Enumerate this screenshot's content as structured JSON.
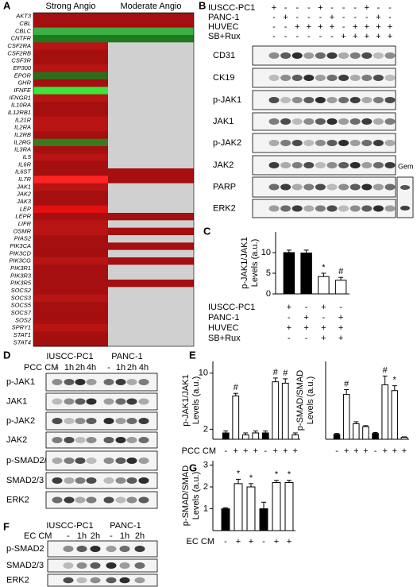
{
  "panel_labels": [
    "A",
    "B",
    "C",
    "D",
    "E",
    "F",
    "G"
  ],
  "heatmap": {
    "columns": [
      "Strong Angio",
      "Moderate Angio"
    ],
    "rows": [
      {
        "gene": "AKT3",
        "colors": [
          "#a50f0f",
          "#a50f0f"
        ]
      },
      {
        "gene": "CBL",
        "colors": [
          "#a50f0f",
          "#a50f0f"
        ]
      },
      {
        "gene": "CBLC",
        "colors": [
          "#3cb043",
          "#3cb043"
        ]
      },
      {
        "gene": "CNTFR",
        "colors": [
          "#1f7a1f",
          "#1f7a1f"
        ]
      },
      {
        "gene": "CSF2RA",
        "colors": [
          "#b81414",
          "#d0d0d0"
        ]
      },
      {
        "gene": "CSF2RB",
        "colors": [
          "#a50f0f",
          "#d0d0d0"
        ]
      },
      {
        "gene": "CSF3R",
        "colors": [
          "#a50f0f",
          "#d0d0d0"
        ]
      },
      {
        "gene": "EP300",
        "colors": [
          "#b81414",
          "#d0d0d0"
        ]
      },
      {
        "gene": "EPOR",
        "colors": [
          "#2e6b1a",
          "#d0d0d0"
        ]
      },
      {
        "gene": "GHR",
        "colors": [
          "#a50f0f",
          "#d0d0d0"
        ]
      },
      {
        "gene": "IFNFE",
        "colors": [
          "#39e639",
          "#d0d0d0"
        ]
      },
      {
        "gene": "IFNGR1",
        "colors": [
          "#b81414",
          "#d0d0d0"
        ]
      },
      {
        "gene": "IL10RA",
        "colors": [
          "#a50f0f",
          "#d0d0d0"
        ]
      },
      {
        "gene": "IL12RB1",
        "colors": [
          "#a50f0f",
          "#d0d0d0"
        ]
      },
      {
        "gene": "IL21R",
        "colors": [
          "#b81414",
          "#d0d0d0"
        ]
      },
      {
        "gene": "IL2RA",
        "colors": [
          "#b81414",
          "#d0d0d0"
        ]
      },
      {
        "gene": "IL2RB",
        "colors": [
          "#a50f0f",
          "#d0d0d0"
        ]
      },
      {
        "gene": "IL2RG",
        "colors": [
          "#3a7a1c",
          "#d0d0d0"
        ]
      },
      {
        "gene": "IL3RA",
        "colors": [
          "#a50f0f",
          "#d0d0d0"
        ]
      },
      {
        "gene": "IL5",
        "colors": [
          "#b81414",
          "#d0d0d0"
        ]
      },
      {
        "gene": "IL6R",
        "colors": [
          "#a50f0f",
          "#d0d0d0"
        ]
      },
      {
        "gene": "IL6ST",
        "colors": [
          "#a50f0f",
          "#a50f0f"
        ]
      },
      {
        "gene": "IL7R",
        "colors": [
          "#ff2424",
          "#a50f0f"
        ]
      },
      {
        "gene": "JAK1",
        "colors": [
          "#b81414",
          "#d0d0d0"
        ]
      },
      {
        "gene": "JAK2",
        "colors": [
          "#a50f0f",
          "#d0d0d0"
        ]
      },
      {
        "gene": "JAK3",
        "colors": [
          "#a50f0f",
          "#d0d0d0"
        ]
      },
      {
        "gene": "LEP",
        "colors": [
          "#e31010",
          "#d0d0d0"
        ]
      },
      {
        "gene": "LEPR",
        "colors": [
          "#a50f0f",
          "#a50f0f"
        ]
      },
      {
        "gene": "LIFR",
        "colors": [
          "#b81414",
          "#d0d0d0"
        ]
      },
      {
        "gene": "OSMR",
        "colors": [
          "#b81414",
          "#a50f0f"
        ]
      },
      {
        "gene": "PIAS2",
        "colors": [
          "#a50f0f",
          "#d0d0d0"
        ]
      },
      {
        "gene": "PIK3CA",
        "colors": [
          "#a50f0f",
          "#a50f0f"
        ]
      },
      {
        "gene": "PIK3CD",
        "colors": [
          "#a50f0f",
          "#d0d0d0"
        ]
      },
      {
        "gene": "PIK3CG",
        "colors": [
          "#b81414",
          "#a50f0f"
        ]
      },
      {
        "gene": "PIK3R1",
        "colors": [
          "#a50f0f",
          "#d0d0d0"
        ]
      },
      {
        "gene": "PIK3R3",
        "colors": [
          "#a50f0f",
          "#d0d0d0"
        ]
      },
      {
        "gene": "PIK3R5",
        "colors": [
          "#a50f0f",
          "#a50f0f"
        ]
      },
      {
        "gene": "SOCS2",
        "colors": [
          "#a50f0f",
          "#d0d0d0"
        ]
      },
      {
        "gene": "SOCS3",
        "colors": [
          "#b81414",
          "#d0d0d0"
        ]
      },
      {
        "gene": "SOCS5",
        "colors": [
          "#a50f0f",
          "#d0d0d0"
        ]
      },
      {
        "gene": "SOCS7",
        "colors": [
          "#a50f0f",
          "#d0d0d0"
        ]
      },
      {
        "gene": "SOS2",
        "colors": [
          "#a50f0f",
          "#d0d0d0"
        ]
      },
      {
        "gene": "SPRY1",
        "colors": [
          "#b81414",
          "#d0d0d0"
        ]
      },
      {
        "gene": "STAT1",
        "colors": [
          "#a50f0f",
          "#d0d0d0"
        ]
      },
      {
        "gene": "STAT4",
        "colors": [
          "#a50f0f",
          "#d0d0d0"
        ]
      }
    ]
  },
  "blot_b": {
    "conditions": [
      {
        "label": "IUSCC-PC1",
        "signs": [
          "+",
          "-",
          "-",
          "-",
          "+",
          "-",
          "-",
          "-",
          "+",
          "-",
          "-"
        ]
      },
      {
        "label": "PANC-1",
        "signs": [
          "-",
          "+",
          "-",
          "-",
          "-",
          "+",
          "-",
          "-",
          "-",
          "+",
          "-"
        ]
      },
      {
        "label": "HUVEC",
        "signs": [
          "-",
          "-",
          "+",
          "+",
          "+",
          "+",
          "-",
          "+",
          "+",
          "+",
          "+"
        ]
      },
      {
        "label": "SB+Rux",
        "signs": [
          "-",
          "-",
          "-",
          "-",
          "-",
          "-",
          "+",
          "+",
          "+",
          "+",
          "+"
        ]
      }
    ],
    "rows": [
      "CD31",
      "CK19",
      "p-JAK1",
      "JAK1",
      "p-JAK2",
      "JAK2",
      "PARP",
      "ERK2"
    ],
    "side_label": "Gem"
  },
  "blot_d": {
    "groups": [
      "IUSCC-PC1",
      "PANC-1"
    ],
    "treatment": "PCC CM",
    "lanes": [
      "-",
      "1h",
      "2h",
      "4h",
      "-",
      "1h",
      "2h",
      "4h"
    ],
    "rows": [
      "p-JAK1",
      "JAK1",
      "p-JAK2",
      "JAK2",
      "p-SMAD2/3",
      "SMAD2/3",
      "ERK2"
    ]
  },
  "blot_f": {
    "groups": [
      "IUSCC-PC1",
      "PANC-1"
    ],
    "treatment": "EC CM",
    "lanes": [
      "-",
      "1h",
      "2h",
      "-",
      "1h",
      "2h"
    ],
    "rows": [
      "p-SMAD2",
      "SMAD2/3",
      "ERK2"
    ]
  },
  "chart_data": [
    {
      "type": "bar",
      "ylabel": [
        "p-JAK1/JAK1",
        "Levels (a.u.)"
      ],
      "values": [
        10,
        9.9,
        4.2,
        3.3
      ],
      "errors": [
        0.6,
        0.7,
        0.8,
        0.7
      ],
      "colors": [
        "#000000",
        "#000000",
        "#ffffff",
        "#ffffff"
      ],
      "annotations": [
        null,
        null,
        "*",
        "#"
      ],
      "ylim": [
        0,
        15
      ],
      "yticks": [
        0,
        5,
        10
      ],
      "conditions": [
        {
          "label": "IUSCC-PC1",
          "signs": [
            "+",
            "-",
            "+",
            "-"
          ]
        },
        {
          "label": "PANC-1",
          "signs": [
            "-",
            "+",
            "-",
            "+"
          ]
        },
        {
          "label": "HUVEC",
          "signs": [
            "+",
            "+",
            "+",
            "+"
          ]
        },
        {
          "label": "SB+Rux",
          "signs": [
            "-",
            "-",
            "+",
            "+"
          ]
        }
      ]
    },
    {
      "type": "bar",
      "yscale": "log",
      "ylabel": [
        "p-JAK1/JAK1",
        "Levels (a.u.)"
      ],
      "values": [
        1.8,
        5.2,
        1.7,
        1.8,
        1.8,
        7.8,
        7.5,
        1.7
      ],
      "errors": [
        0.1,
        0.4,
        0.1,
        0.1,
        0.1,
        0.9,
        1.0,
        0.1
      ],
      "colors": [
        "#000000",
        "#ffffff",
        "#ffffff",
        "#ffffff",
        "#000000",
        "#ffffff",
        "#ffffff",
        "#ffffff"
      ],
      "annotations": [
        null,
        "#",
        null,
        null,
        null,
        "#",
        "#",
        null
      ],
      "ylim": [
        1.5,
        14
      ],
      "yticks": [
        2,
        10
      ],
      "x_label": "PCC CM",
      "categories": [
        "-",
        "+",
        "+",
        "+",
        "-",
        "+",
        "+",
        "+"
      ]
    },
    {
      "type": "bar",
      "ylabel": [
        "p-SMAD/SMAD",
        "Levels (a.u.)"
      ],
      "values": [
        0.5,
        4.6,
        1.6,
        1.3,
        0.6,
        5.6,
        5.0,
        0.2
      ],
      "errors": [
        0.1,
        0.5,
        0.2,
        0.1,
        0.1,
        0.9,
        0.5,
        0.05
      ],
      "colors": [
        "#000000",
        "#ffffff",
        "#ffffff",
        "#ffffff",
        "#000000",
        "#ffffff",
        "#ffffff",
        "#ffffff"
      ],
      "annotations": [
        null,
        "#",
        null,
        null,
        null,
        "#",
        "*",
        null
      ],
      "ylim": [
        0,
        8
      ],
      "categories": [
        "-",
        "+",
        "+",
        "+",
        "-",
        "+",
        "+",
        "+"
      ]
    },
    {
      "type": "bar",
      "ylabel": [
        "p-SMAD/SMAD",
        "Levels (a.u.)"
      ],
      "values": [
        1,
        2.15,
        2,
        1,
        2.2,
        2.2
      ],
      "errors": [
        0.05,
        0.2,
        0.15,
        0.3,
        0.1,
        0.1
      ],
      "colors": [
        "#000000",
        "#ffffff",
        "#ffffff",
        "#000000",
        "#ffffff",
        "#ffffff"
      ],
      "annotations": [
        null,
        "*",
        "*",
        null,
        "*",
        "*"
      ],
      "ylim": [
        0,
        3.2
      ],
      "yticks": [
        1,
        2,
        3
      ],
      "x_label": "EC CM",
      "categories": [
        "-",
        "+",
        "+",
        "-",
        "+",
        "+"
      ]
    }
  ]
}
